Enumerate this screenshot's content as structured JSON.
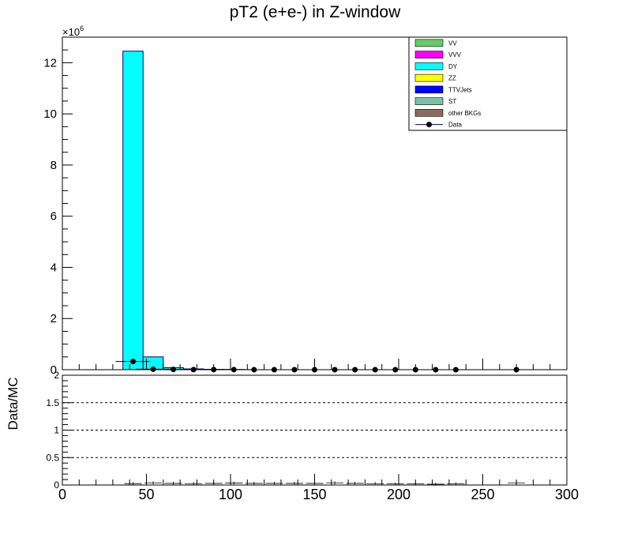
{
  "chart_data": [
    {
      "type": "bar",
      "title": "pT2 (e+e-) in Z-window",
      "xlabel": "",
      "ylabel": "",
      "xlim": [
        0,
        300
      ],
      "ylim": [
        0,
        13000000
      ],
      "y_exponent_label": "×10",
      "y_exponent_power": "6",
      "y_tick_labels": [
        "0",
        "2",
        "4",
        "6",
        "8",
        "10",
        "12"
      ],
      "y_tick_scale": 1000000,
      "legend_position": "top-right",
      "legend": [
        {
          "label": "VV",
          "color": "#66cc66",
          "style": "box"
        },
        {
          "label": "VVV",
          "color": "#ff00ff",
          "style": "box"
        },
        {
          "label": "DY",
          "color": "#00ffff",
          "style": "box"
        },
        {
          "label": "ZZ",
          "color": "#ffff00",
          "style": "box"
        },
        {
          "label": "TTVJets",
          "color": "#0000ff",
          "style": "box"
        },
        {
          "label": "ST",
          "color": "#7fbfa6",
          "style": "box"
        },
        {
          "label": "other BKGs",
          "color": "#8c6b5c",
          "style": "box"
        },
        {
          "label": "Data",
          "color": "#000000",
          "style": "marker"
        }
      ],
      "series": [
        {
          "name": "DY",
          "color": "#00ffff",
          "bins": [
            {
              "x0": 36,
              "x1": 48,
              "value": 12450000
            },
            {
              "x0": 48,
              "x1": 60,
              "value": 500000
            },
            {
              "x0": 60,
              "x1": 72,
              "value": 80000
            },
            {
              "x0": 72,
              "x1": 84,
              "value": 30000
            },
            {
              "x0": 84,
              "x1": 96,
              "value": 15000
            },
            {
              "x0": 96,
              "x1": 108,
              "value": 8000
            }
          ]
        },
        {
          "name": "Data",
          "color": "#000000",
          "points": [
            {
              "x": 42,
              "y": 320000
            },
            {
              "x": 54,
              "y": 20000
            },
            {
              "x": 66,
              "y": 10000
            },
            {
              "x": 78,
              "y": 5000
            },
            {
              "x": 90,
              "y": 3000
            },
            {
              "x": 102,
              "y": 2000
            },
            {
              "x": 114,
              "y": 1000
            },
            {
              "x": 126,
              "y": 800
            },
            {
              "x": 138,
              "y": 600
            },
            {
              "x": 150,
              "y": 400
            },
            {
              "x": 162,
              "y": 300
            },
            {
              "x": 174,
              "y": 200
            },
            {
              "x": 186,
              "y": 150
            },
            {
              "x": 198,
              "y": 100
            },
            {
              "x": 210,
              "y": 80
            },
            {
              "x": 222,
              "y": 60
            },
            {
              "x": 234,
              "y": 40
            },
            {
              "x": 270,
              "y": 20
            }
          ]
        }
      ]
    },
    {
      "type": "scatter",
      "title": "",
      "xlabel": "",
      "ylabel": "Data/MC",
      "xlim": [
        0,
        300
      ],
      "ylim": [
        0,
        2
      ],
      "x_tick_labels": [
        "0",
        "50",
        "100",
        "150",
        "200",
        "250",
        "300"
      ],
      "y_tick_labels": [
        "0",
        "0.5",
        "1",
        "1.5",
        "2"
      ],
      "reference_lines": [
        0.5,
        1,
        1.5
      ],
      "series": [
        {
          "name": "ratio",
          "color": "#000000",
          "points": [
            {
              "x": 42,
              "y": 0.026
            },
            {
              "x": 54,
              "y": 0.04
            },
            {
              "x": 66,
              "y": 0.03
            },
            {
              "x": 78,
              "y": 0.025
            },
            {
              "x": 90,
              "y": 0.03
            },
            {
              "x": 102,
              "y": 0.035
            },
            {
              "x": 114,
              "y": 0.03
            },
            {
              "x": 126,
              "y": 0.03
            },
            {
              "x": 138,
              "y": 0.03
            },
            {
              "x": 150,
              "y": 0.03
            },
            {
              "x": 162,
              "y": 0.04
            },
            {
              "x": 174,
              "y": 0.03
            },
            {
              "x": 186,
              "y": 0.025
            },
            {
              "x": 198,
              "y": 0.02
            },
            {
              "x": 210,
              "y": 0.02
            },
            {
              "x": 222,
              "y": 0.015
            },
            {
              "x": 234,
              "y": 0.02
            },
            {
              "x": 270,
              "y": 0.04
            }
          ]
        }
      ]
    }
  ]
}
